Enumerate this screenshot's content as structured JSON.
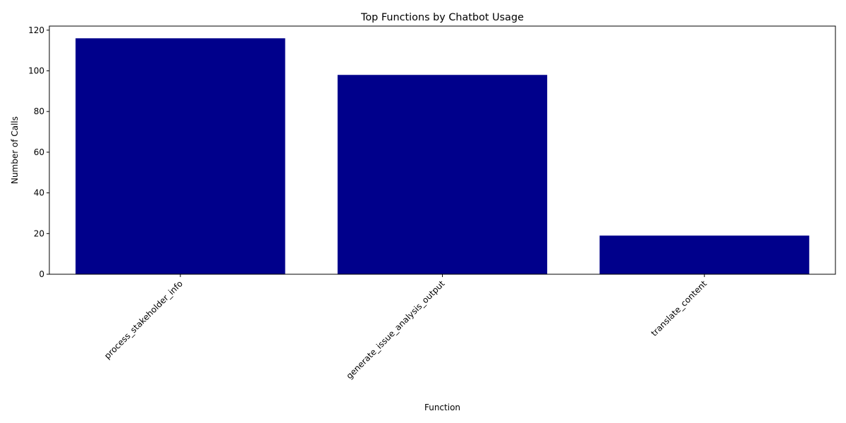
{
  "chart_data": {
    "type": "bar",
    "title": "Top Functions by Chatbot Usage",
    "xlabel": "Function",
    "ylabel": "Number of Calls",
    "categories": [
      "process_stakeholder_info",
      "generate_issue_analysis_output",
      "translate_content"
    ],
    "values": [
      116,
      98,
      19
    ],
    "ylim": [
      0,
      122
    ],
    "yticks": [
      0,
      20,
      40,
      60,
      80,
      100,
      120
    ],
    "bar_color": "#00008b",
    "grid": false,
    "legend": "none"
  }
}
